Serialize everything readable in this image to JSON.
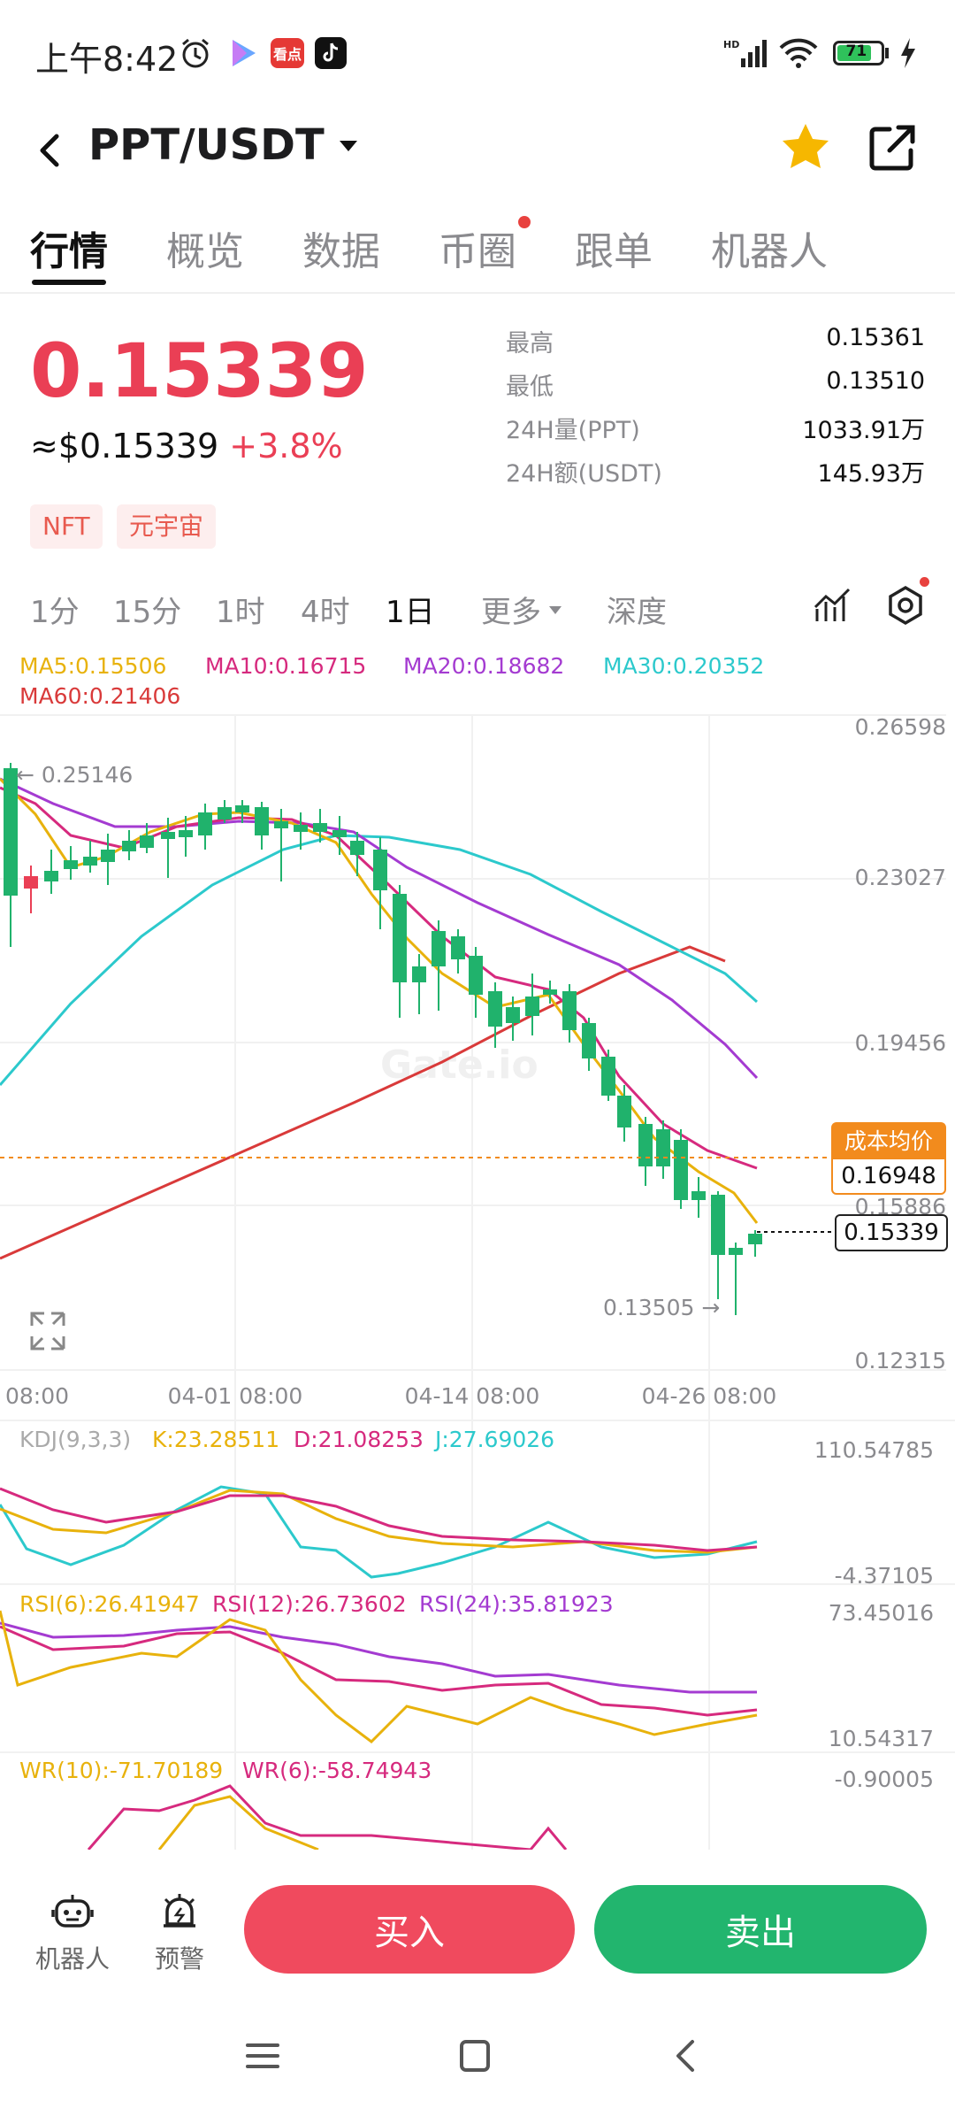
{
  "status_bar": {
    "time": "上午8:42",
    "app_badge": "看点",
    "battery": "71"
  },
  "header": {
    "pair": "PPT/USDT"
  },
  "tabs": [
    "行情",
    "概览",
    "数据",
    "币圈",
    "跟单",
    "机器人"
  ],
  "price": {
    "last": "0.15339",
    "usd": "≈$0.15339",
    "change": "+3.8%"
  },
  "tags": [
    "NFT",
    "元宇宙"
  ],
  "stats": [
    {
      "label": "最高",
      "value": "0.15361"
    },
    {
      "label": "最低",
      "value": "0.13510"
    },
    {
      "label": "24H量(PPT)",
      "value": "1033.91万"
    },
    {
      "label": "24H额(USDT)",
      "value": "145.93万"
    }
  ],
  "timeframes": [
    "1分",
    "15分",
    "1时",
    "4时",
    "1日",
    "更多",
    "深度"
  ],
  "ma_legend": {
    "ma5": "MA5:0.15506",
    "ma10": "MA10:0.16715",
    "ma20": "MA20:0.18682",
    "ma30": "MA30:0.20352",
    "ma60": "MA60:0.21406"
  },
  "colors": {
    "up": "#ea3f55",
    "down": "#20b26c",
    "ma5": "#e8b20c",
    "ma10": "#d62a7e",
    "ma20": "#a43bd1",
    "ma30": "#2cc9cc",
    "ma60": "#d93a3a",
    "cost": "#f28b1d"
  },
  "main_chart": {
    "y_ticks": [
      "0.26598",
      "0.23027",
      "0.19456",
      "0.15886",
      "0.12315"
    ],
    "x_ticks": [
      "08:00",
      "04-01 08:00",
      "04-14 08:00",
      "04-26 08:00"
    ],
    "high_marker": "← 0.25146",
    "low_marker": "0.13505 →",
    "cost_label": "成本均价",
    "cost_value": "0.16948",
    "current_price": "0.15339",
    "watermark": "Gate.io"
  },
  "kdj": {
    "title": "KDJ(9,3,3)",
    "k": "K:23.28511",
    "d": "D:21.08253",
    "j": "J:27.69026",
    "max": "110.54785",
    "min": "-4.37105"
  },
  "rsi": {
    "r6": "RSI(6):26.41947",
    "r12": "RSI(12):26.73602",
    "r24": "RSI(24):35.81923",
    "max": "73.45016",
    "min": "10.54317"
  },
  "wr": {
    "w10": "WR(10):-71.70189",
    "w6": "WR(6):-58.74943",
    "max": "-0.90005"
  },
  "bottom": {
    "robot": "机器人",
    "alert": "预警",
    "buy": "买入",
    "sell": "卖出"
  }
}
